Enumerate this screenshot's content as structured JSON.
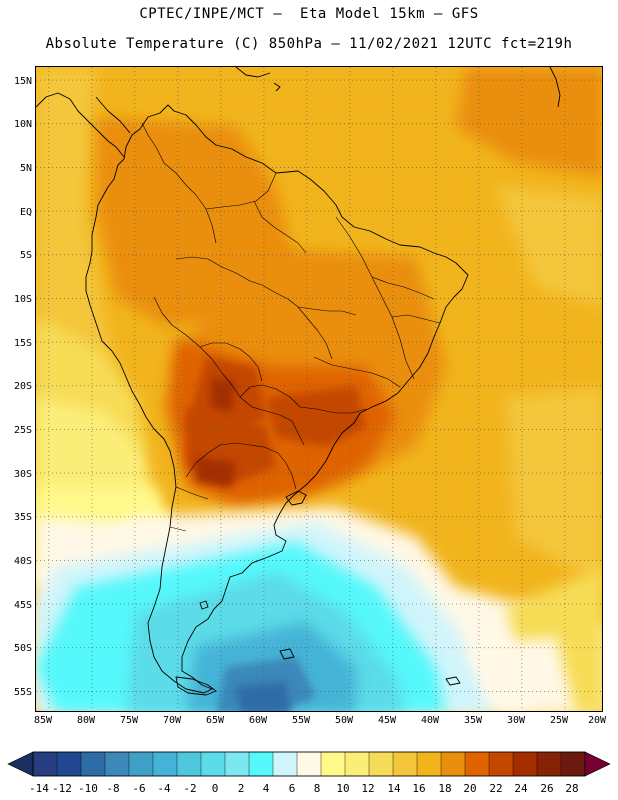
{
  "header": {
    "line1": "CPTEC/INPE/MCT –  Eta Model 15km – GFS",
    "line2": "Absolute Temperature (C) 850hPa – 11/02/2021 12UTC fct=219h"
  },
  "map": {
    "lat_labels": [
      "15N",
      "10N",
      "5N",
      "EQ",
      "5S",
      "10S",
      "15S",
      "20S",
      "25S",
      "30S",
      "35S",
      "40S",
      "45S",
      "50S",
      "55S"
    ],
    "lon_labels": [
      "85W",
      "80W",
      "75W",
      "70W",
      "65W",
      "60W",
      "55W",
      "50W",
      "45W",
      "40W",
      "35W",
      "30W",
      "25W",
      "20W"
    ],
    "lat_values": [
      15,
      10,
      5,
      0,
      -5,
      -10,
      -15,
      -20,
      -25,
      -30,
      -35,
      -40,
      -45,
      -50,
      -55
    ],
    "lon_values": [
      -85,
      -80,
      -75,
      -70,
      -65,
      -60,
      -55,
      -50,
      -45,
      -40,
      -35,
      -30,
      -25,
      -20
    ],
    "lat_range": [
      -57.5,
      16.5
    ],
    "lon_range": [
      -86.5,
      -20.5
    ],
    "grid": "dotted"
  },
  "colorbar": {
    "labels": [
      "-14",
      "-12",
      "-10",
      "-8",
      "-6",
      "-4",
      "-2",
      "0",
      "2",
      "4",
      "6",
      "8",
      "10",
      "12",
      "14",
      "16",
      "18",
      "20",
      "22",
      "24",
      "26",
      "28"
    ],
    "colors": [
      "#263d80",
      "#20478f",
      "#2e6ca8",
      "#3b88b9",
      "#3ea0c8",
      "#44b3d6",
      "#4fc8df",
      "#5cdbe8",
      "#7de7f1",
      "#55f8fb",
      "#d0f5fb",
      "#fff8e6",
      "#fff98a",
      "#fbee78",
      "#f7dc57",
      "#f4c63a",
      "#f1b41d",
      "#ea8e0e",
      "#df6400",
      "#c44700",
      "#a42e00",
      "#862205",
      "#6c190f"
    ],
    "under_color": "#1c2f62",
    "over_color": "#750034"
  }
}
